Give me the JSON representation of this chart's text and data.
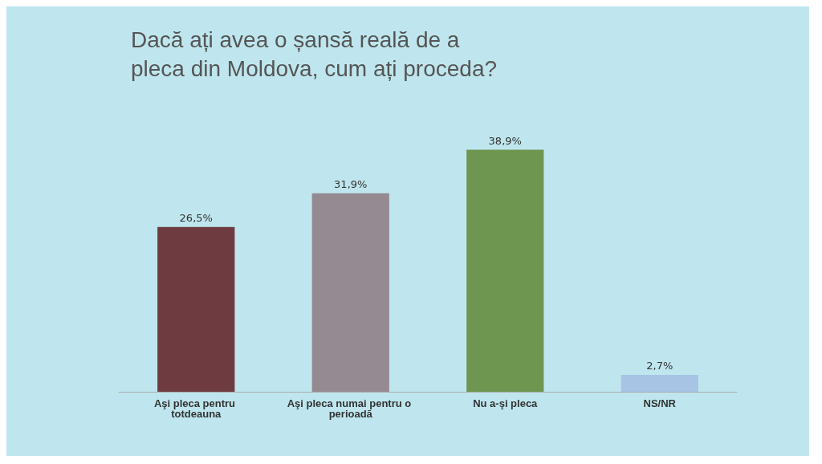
{
  "chart_data": {
    "type": "bar",
    "title": "Dacă ați avea o șansă reală de a pleca din Moldova, cum ați proceda?",
    "categories": [
      "Aşi pleca pentru totdeauna",
      "Aşi pleca numai pentru o perioadă",
      "Nu a-şi pleca",
      "NS/NR"
    ],
    "values": [
      26.5,
      31.9,
      38.9,
      2.7
    ],
    "colors": [
      "#6e3c40",
      "#968a92",
      "#6f9650",
      "#a8c4e4"
    ],
    "value_labels": [
      "26,5%",
      "31,9%",
      "38,9%",
      "2,7%"
    ]
  }
}
